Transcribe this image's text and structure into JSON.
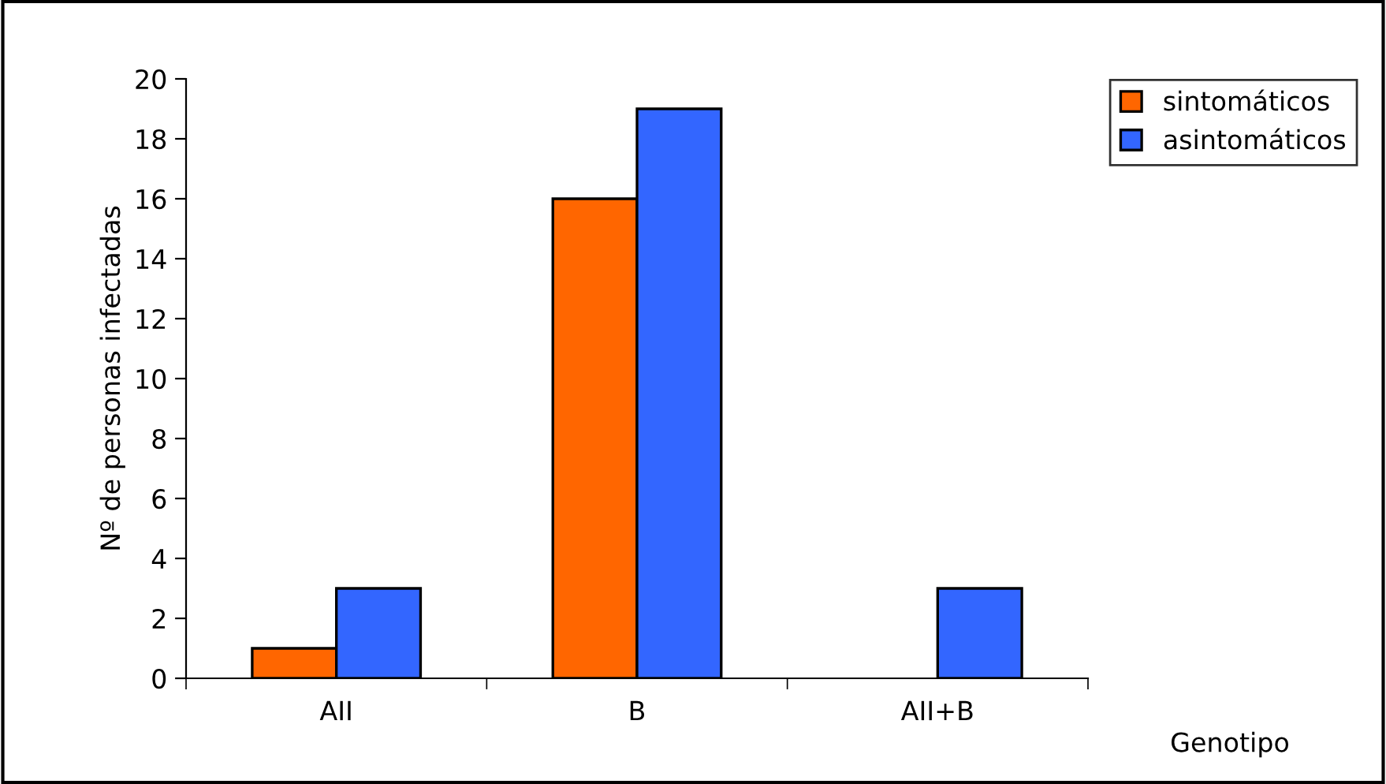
{
  "chart_data": {
    "type": "bar",
    "categories": [
      "AII",
      "B",
      "AII+B"
    ],
    "series": [
      {
        "name": "sintomáticos",
        "color": "#ff6600",
        "values": [
          1,
          16,
          null
        ]
      },
      {
        "name": "asintomáticos",
        "color": "#3366ff",
        "values": [
          3,
          19,
          3
        ]
      }
    ],
    "xlabel": "Genotipo",
    "ylabel": "Nº de personas infectadas",
    "ylim": [
      0,
      20
    ],
    "yticks": [
      0,
      2,
      4,
      6,
      8,
      10,
      12,
      14,
      16,
      18,
      20
    ],
    "grid": false,
    "legend": "top right"
  }
}
